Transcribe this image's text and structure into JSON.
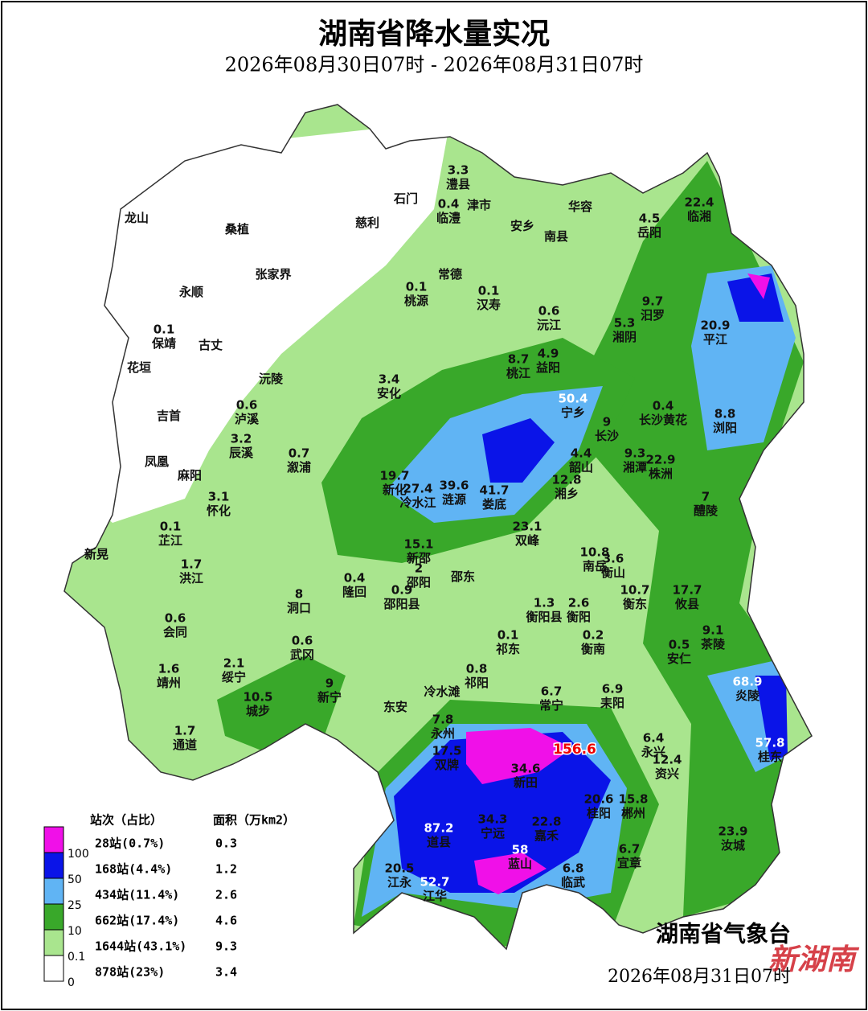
{
  "header": {
    "title": "湖南省降水量实况",
    "subtitle": "2026年08月30日07时 - 2026年08月31日07时"
  },
  "stations": [
    {
      "name": "澧县",
      "value": 3.3
    },
    {
      "name": "石门"
    },
    {
      "name": "临澧",
      "value": 0.4
    },
    {
      "name": "津市"
    },
    {
      "name": "华容"
    },
    {
      "name": "安乡"
    },
    {
      "name": "南县"
    },
    {
      "name": "临湘",
      "value": 22.4
    },
    {
      "name": "岳阳",
      "value": 4.5
    },
    {
      "name": "龙山"
    },
    {
      "name": "桑植"
    },
    {
      "name": "慈利"
    },
    {
      "name": "张家界"
    },
    {
      "name": "常德"
    },
    {
      "name": "永顺"
    },
    {
      "name": "桃源",
      "value": 0.1
    },
    {
      "name": "汉寿",
      "value": 0.1
    },
    {
      "name": "汨罗",
      "value": 9.7
    },
    {
      "name": "沅江",
      "value": 0.6
    },
    {
      "name": "湘阴",
      "value": 5.3
    },
    {
      "name": "保靖",
      "value": 0.1
    },
    {
      "name": "古丈"
    },
    {
      "name": "平江",
      "value": 20.9
    },
    {
      "name": "花垣"
    },
    {
      "name": "桃江",
      "value": 8.7
    },
    {
      "name": "益阳",
      "value": 4.9
    },
    {
      "name": "沅陵"
    },
    {
      "name": "安化",
      "value": 3.4
    },
    {
      "name": "宁乡",
      "value": 50.4
    },
    {
      "name": "吉首"
    },
    {
      "name": "泸溪",
      "value": 0.6
    },
    {
      "name": "长沙",
      "value": 9
    },
    {
      "name": "长沙黄花",
      "value": 0.4
    },
    {
      "name": "浏阳",
      "value": 8.8
    },
    {
      "name": "辰溪",
      "value": 3.2
    },
    {
      "name": "溆浦",
      "value": 0.7
    },
    {
      "name": "韶山",
      "value": 4.4
    },
    {
      "name": "湘潭",
      "value": 9.3
    },
    {
      "name": "凤凰"
    },
    {
      "name": "麻阳"
    },
    {
      "name": "株洲",
      "value": 22.9
    },
    {
      "name": "新化",
      "value": 19.7
    },
    {
      "name": "冷水江",
      "value": 27.4
    },
    {
      "name": "涟源",
      "value": 39.6
    },
    {
      "name": "娄底",
      "value": 41.7
    },
    {
      "name": "湘乡",
      "value": 12.8
    },
    {
      "name": "怀化",
      "value": 3.1
    },
    {
      "name": "醴陵",
      "value": 7
    },
    {
      "name": "芷江",
      "value": 0.1
    },
    {
      "name": "双峰",
      "value": 23.1
    },
    {
      "name": "新晃"
    },
    {
      "name": "新邵",
      "value": 15.1
    },
    {
      "name": "南岳",
      "value": 10.8
    },
    {
      "name": "衡山",
      "value": 3.6
    },
    {
      "name": "洪江",
      "value": 1.7
    },
    {
      "name": "邵阳",
      "value": 2
    },
    {
      "name": "邵东"
    },
    {
      "name": "隆回",
      "value": 0.4
    },
    {
      "name": "洞口",
      "value": 8
    },
    {
      "name": "邵阳县",
      "value": 0.9
    },
    {
      "name": "衡阳县",
      "value": 1.3
    },
    {
      "name": "衡阳",
      "value": 2.6
    },
    {
      "name": "衡东",
      "value": 10.7
    },
    {
      "name": "攸县",
      "value": 17.7
    },
    {
      "name": "会同",
      "value": 0.6
    },
    {
      "name": "武冈",
      "value": 0.6
    },
    {
      "name": "祁东",
      "value": 0.1
    },
    {
      "name": "衡南",
      "value": 0.2
    },
    {
      "name": "安仁",
      "value": 0.5
    },
    {
      "name": "茶陵",
      "value": 9.1
    },
    {
      "name": "靖州",
      "value": 1.6
    },
    {
      "name": "绥宁",
      "value": 2.1
    },
    {
      "name": "祁阳",
      "value": 0.8
    },
    {
      "name": "新宁",
      "value": 9
    },
    {
      "name": "冷水滩"
    },
    {
      "name": "炎陵",
      "value": 68.9
    },
    {
      "name": "常宁",
      "value": 6.7
    },
    {
      "name": "耒阳",
      "value": 6.9
    },
    {
      "name": "城步",
      "value": 10.5
    },
    {
      "name": "东安"
    },
    {
      "name": "永州",
      "value": 7.8
    },
    {
      "name": "通道",
      "value": 1.7
    },
    {
      "name": "永兴",
      "value": 6.4
    },
    {
      "name": "双牌",
      "value": 17.5
    },
    {
      "value": 156.6
    },
    {
      "name": "桂东",
      "value": 57.8
    },
    {
      "name": "资兴",
      "value": 12.4
    },
    {
      "name": "新田",
      "value": 34.6
    },
    {
      "name": "桂阳",
      "value": 20.6
    },
    {
      "name": "郴州",
      "value": 15.8
    },
    {
      "name": "道县",
      "value": 87.2
    },
    {
      "name": "宁远",
      "value": 34.3
    },
    {
      "name": "嘉禾",
      "value": 22.8
    },
    {
      "name": "汝城",
      "value": 23.9
    },
    {
      "name": "宜章",
      "value": 6.7
    },
    {
      "name": "蓝山",
      "value": 58
    },
    {
      "name": "江永",
      "value": 20.5
    },
    {
      "name": "临武",
      "value": 6.8
    },
    {
      "name": "江华",
      "value": 52.7
    }
  ],
  "legend": {
    "header_stations": "站次（占比）",
    "header_area": "面积（万km2）",
    "items": [
      {
        "stations": "28站(0.7%)",
        "area": 0.3,
        "color": "#f010e8"
      },
      {
        "stations": "168站(4.4%)",
        "area": 1.2,
        "color": "#0a14e8"
      },
      {
        "stations": "434站(11.4%)",
        "area": 2.6,
        "color": "#60b4f4"
      },
      {
        "stations": "662站(17.4%)",
        "area": 4.6,
        "color": "#39a82a"
      },
      {
        "stations": "1644站(43.1%)",
        "area": 9.3,
        "color": "#a9e58e"
      },
      {
        "stations": "878站(23%)",
        "area": 3.4,
        "color": "#ffffff"
      }
    ],
    "thresholds": [
      100,
      50,
      25,
      10,
      0.1,
      0
    ]
  },
  "footer": {
    "agency": "湖南省气象台",
    "time": "2026年08月31日07时",
    "watermark": "新湖南"
  }
}
